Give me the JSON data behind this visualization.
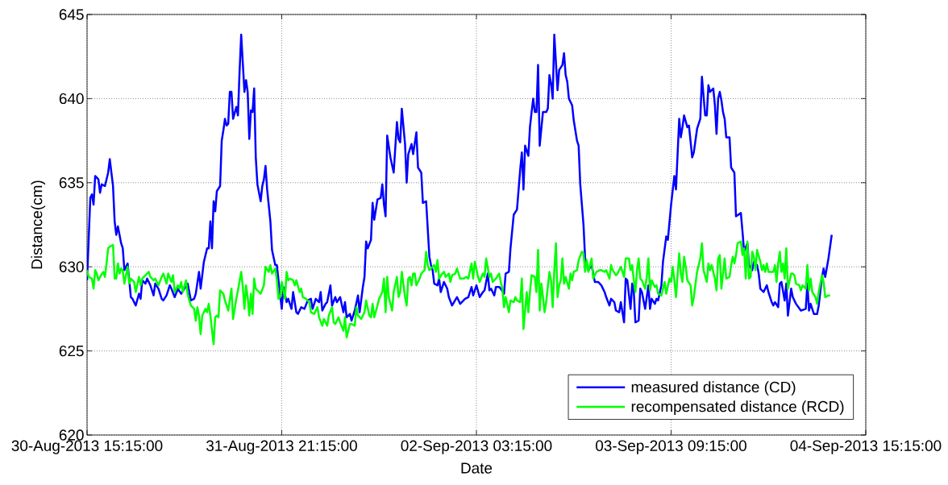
{
  "chart_data": {
    "type": "line",
    "xlabel": "Date",
    "ylabel": "Distance(cm)",
    "xlim": [
      "2013-08-30T15:15",
      "2013-09-04T15:15"
    ],
    "xticks": [
      {
        "value": "2013-08-30T15:15",
        "label": "30-Aug-2013 15:15:00"
      },
      {
        "value": "2013-08-31T21:15",
        "label": "31-Aug-2013 21:15:00"
      },
      {
        "value": "2013-09-02T03:15",
        "label": "02-Sep-2013 03:15:00"
      },
      {
        "value": "2013-09-03T09:15",
        "label": "03-Sep-2013 09:15:00"
      },
      {
        "value": "2013-09-04T15:15",
        "label": "04-Sep-2013 15:15:00"
      }
    ],
    "ylim": [
      620,
      645
    ],
    "yticks": [
      620,
      625,
      630,
      635,
      640,
      645
    ],
    "grid": true,
    "legend": "bottom right",
    "series": [
      {
        "name": "measured distance (CD)",
        "color": "#0000ff",
        "x": [
          "2013-08-30T15:15",
          "2013-08-30T15:45",
          "2013-08-30T16:00",
          "2013-08-30T16:15",
          "2013-08-30T16:30",
          "2013-08-30T17:00",
          "2013-08-30T17:15",
          "2013-08-30T17:30",
          "2013-08-30T18:00",
          "2013-08-30T18:30",
          "2013-08-30T18:45",
          "2013-08-30T19:15",
          "2013-08-30T19:30",
          "2013-08-30T19:45",
          "2013-08-30T20:00",
          "2013-08-30T20:30",
          "2013-08-30T20:45",
          "2013-08-30T21:00",
          "2013-08-30T21:30",
          "2013-08-30T22:00",
          "2013-08-30T22:15",
          "2013-08-30T22:45",
          "2013-08-30T23:15",
          "2013-08-30T23:30",
          "2013-08-30T23:45",
          "2013-08-31T00:15",
          "2013-08-31T00:30",
          "2013-08-31T01:00",
          "2013-08-31T01:30",
          "2013-08-31T01:45",
          "2013-08-31T02:15",
          "2013-08-31T02:45",
          "2013-08-31T03:00",
          "2013-08-31T03:30",
          "2013-08-31T04:00",
          "2013-08-31T04:15",
          "2013-08-31T04:45",
          "2013-08-31T05:15",
          "2013-08-31T05:45",
          "2013-08-31T06:15",
          "2013-08-31T06:45",
          "2013-08-31T07:15",
          "2013-08-31T07:45",
          "2013-08-31T08:00",
          "2013-08-31T08:30",
          "2013-08-31T08:45",
          "2013-08-31T09:15",
          "2013-08-31T09:45",
          "2013-08-31T10:00",
          "2013-08-31T10:15",
          "2013-08-31T10:30",
          "2013-08-31T10:45",
          "2013-08-31T11:00",
          "2013-08-31T11:15",
          "2013-08-31T11:45",
          "2013-08-31T12:00",
          "2013-08-31T12:15",
          "2013-08-31T12:30",
          "2013-08-31T12:45",
          "2013-08-31T13:00",
          "2013-08-31T13:15",
          "2013-08-31T13:30",
          "2013-08-31T13:45",
          "2013-08-31T14:15",
          "2013-08-31T14:30",
          "2013-08-31T14:45",
          "2013-08-31T15:00",
          "2013-08-31T15:30",
          "2013-08-31T15:45",
          "2013-08-31T16:00",
          "2013-08-31T16:15",
          "2013-08-31T16:30",
          "2013-08-31T16:45",
          "2013-08-31T17:00",
          "2013-08-31T17:15",
          "2013-08-31T17:30",
          "2013-08-31T18:00",
          "2013-08-31T18:15",
          "2013-08-31T18:30",
          "2013-08-31T18:45",
          "2013-08-31T19:00",
          "2013-08-31T19:30",
          "2013-08-31T19:45",
          "2013-08-31T20:15",
          "2013-08-31T20:30",
          "2013-08-31T20:45",
          "2013-08-31T21:15",
          "2013-08-31T21:30",
          "2013-08-31T22:00",
          "2013-08-31T22:15",
          "2013-08-31T22:45",
          "2013-08-31T23:00",
          "2013-08-31T23:30",
          "2013-08-31T23:45",
          "2013-09-01T00:15",
          "2013-09-01T00:45",
          "2013-09-01T01:15",
          "2013-09-01T01:45",
          "2013-09-01T02:00",
          "2013-09-01T02:30",
          "2013-09-01T03:00",
          "2013-09-01T03:15",
          "2013-09-01T03:30",
          "2013-09-01T04:00",
          "2013-09-01T04:15",
          "2013-09-01T04:45",
          "2013-09-01T05:00",
          "2013-09-01T05:30",
          "2013-09-01T05:45",
          "2013-09-01T06:15",
          "2013-09-01T06:45",
          "2013-09-01T07:00",
          "2013-09-01T07:15",
          "2013-09-01T07:45",
          "2013-09-01T08:00",
          "2013-09-01T08:30",
          "2013-09-01T09:00",
          "2013-09-01T09:15",
          "2013-09-01T09:45",
          "2013-09-01T10:00",
          "2013-09-01T10:15",
          "2013-09-01T10:30",
          "2013-09-01T11:00",
          "2013-09-01T11:15",
          "2013-09-01T11:30",
          "2013-09-01T12:00",
          "2013-09-01T12:30",
          "2013-09-01T12:45",
          "2013-09-01T13:00",
          "2013-09-01T13:15",
          "2013-09-01T13:30",
          "2013-09-01T14:00",
          "2013-09-01T14:30",
          "2013-09-01T15:00",
          "2013-09-01T15:15",
          "2013-09-01T15:30",
          "2013-09-01T15:45",
          "2013-09-01T16:15",
          "2013-09-01T16:30",
          "2013-09-01T16:45",
          "2013-09-01T17:15",
          "2013-09-01T17:30",
          "2013-09-01T18:00",
          "2013-09-01T18:15",
          "2013-09-01T18:45",
          "2013-09-01T19:00",
          "2013-09-01T19:30",
          "2013-09-01T20:00",
          "2013-09-01T20:15",
          "2013-09-01T20:30",
          "2013-09-01T20:45",
          "2013-09-01T21:15",
          "2013-09-01T21:30",
          "2013-09-01T21:45",
          "2013-09-01T22:15",
          "2013-09-01T22:45",
          "2013-09-01T23:00",
          "2013-09-01T23:30",
          "2013-09-02T00:15",
          "2013-09-02T00:45",
          "2013-09-02T01:30",
          "2013-09-02T02:00",
          "2013-09-02T02:30",
          "2013-09-02T02:45",
          "2013-09-02T03:15",
          "2013-09-02T03:45",
          "2013-09-02T04:15",
          "2013-09-02T04:30",
          "2013-09-02T05:00",
          "2013-09-02T05:15",
          "2013-09-02T05:30",
          "2013-09-02T06:00",
          "2013-09-02T06:15",
          "2013-09-02T06:45",
          "2013-09-02T07:00",
          "2013-09-02T07:30",
          "2013-09-02T07:45",
          "2013-09-02T08:15",
          "2013-09-02T08:30",
          "2013-09-02T08:45",
          "2013-09-02T09:00",
          "2013-09-02T09:30",
          "2013-09-02T09:45",
          "2013-09-02T10:00",
          "2013-09-02T10:15",
          "2013-09-02T10:30",
          "2013-09-02T10:45",
          "2013-09-02T11:15",
          "2013-09-02T11:30",
          "2013-09-02T11:45",
          "2013-09-02T12:00",
          "2013-09-02T12:15",
          "2013-09-02T12:30",
          "2013-09-02T12:45",
          "2013-09-02T13:00",
          "2013-09-02T13:30",
          "2013-09-02T14:00",
          "2013-09-02T14:15",
          "2013-09-02T14:30",
          "2013-09-02T14:45",
          "2013-09-02T15:00",
          "2013-09-02T15:15",
          "2013-09-02T15:45",
          "2013-09-02T16:00",
          "2013-09-02T16:30",
          "2013-09-02T16:45",
          "2013-09-02T17:00",
          "2013-09-02T17:15",
          "2013-09-02T17:30",
          "2013-09-02T18:00",
          "2013-09-02T18:15",
          "2013-09-02T18:45",
          "2013-09-02T19:00",
          "2013-09-02T19:15",
          "2013-09-02T19:45",
          "2013-09-02T20:00",
          "2013-09-02T20:15",
          "2013-09-02T20:30",
          "2013-09-02T21:00",
          "2013-09-02T21:30",
          "2013-09-02T22:00",
          "2013-09-02T22:30",
          "2013-09-02T23:00",
          "2013-09-02T23:15",
          "2013-09-02T23:45",
          "2013-09-03T00:00",
          "2013-09-03T00:30",
          "2013-09-03T00:45",
          "2013-09-03T01:15",
          "2013-09-03T01:30",
          "2013-09-03T02:00",
          "2013-09-03T02:15",
          "2013-09-03T02:30",
          "2013-09-03T03:00",
          "2013-09-03T03:15",
          "2013-09-03T03:30",
          "2013-09-03T03:45",
          "2013-09-03T04:15",
          "2013-09-03T04:30",
          "2013-09-03T04:45",
          "2013-09-03T05:15",
          "2013-09-03T05:45",
          "2013-09-03T06:00",
          "2013-09-03T06:15",
          "2013-09-03T06:45",
          "2013-09-03T07:00",
          "2013-09-03T07:15",
          "2013-09-03T07:45",
          "2013-09-03T08:00",
          "2013-09-03T08:30",
          "2013-09-03T08:45",
          "2013-09-03T09:15",
          "2013-09-03T09:45",
          "2013-09-03T10:00",
          "2013-09-03T10:30",
          "2013-09-03T10:45",
          "2013-09-03T11:00",
          "2013-09-03T11:15",
          "2013-09-03T11:45",
          "2013-09-03T12:00",
          "2013-09-03T12:30",
          "2013-09-03T12:45",
          "2013-09-03T13:15",
          "2013-09-03T13:45",
          "2013-09-03T14:00",
          "2013-09-03T14:30",
          "2013-09-03T14:45",
          "2013-09-03T15:00",
          "2013-09-03T15:15",
          "2013-09-03T15:45",
          "2013-09-03T16:00",
          "2013-09-03T16:15",
          "2013-09-03T16:30",
          "2013-09-03T16:45",
          "2013-09-03T17:00",
          "2013-09-03T17:15",
          "2013-09-03T17:30",
          "2013-09-03T17:45",
          "2013-09-03T18:15",
          "2013-09-03T18:30",
          "2013-09-03T19:00",
          "2013-09-03T19:15",
          "2013-09-03T20:00",
          "2013-09-03T20:15",
          "2013-09-03T20:30",
          "2013-09-03T21:00",
          "2013-09-03T21:15",
          "2013-09-03T21:45",
          "2013-09-03T22:00",
          "2013-09-03T22:30",
          "2013-09-03T22:45",
          "2013-09-03T23:00",
          "2013-09-03T23:30",
          "2013-09-04T00:00",
          "2013-09-04T00:15",
          "2013-09-04T00:45",
          "2013-09-04T01:00",
          "2013-09-04T01:15",
          "2013-09-04T01:45",
          "2013-09-04T02:00",
          "2013-09-04T02:15",
          "2013-09-04T02:45",
          "2013-09-04T03:00",
          "2013-09-04T03:15",
          "2013-09-04T03:45",
          "2013-09-04T04:00",
          "2013-09-04T04:30",
          "2013-09-04T05:15",
          "2013-09-04T06:00",
          "2013-09-04T06:15",
          "2013-09-04T06:30",
          "2013-09-04T06:45",
          "2013-09-04T07:15",
          "2013-09-04T07:45",
          "2013-09-04T08:00",
          "2013-09-04T08:30",
          "2013-09-04T08:45",
          "2013-09-04T09:00",
          "2013-09-04T09:30",
          "2013-09-04T10:00"
        ],
        "values": [
          629.2,
          634.1,
          634.3,
          633.7,
          635.4,
          635.2,
          634.4,
          634.9,
          634.8,
          635.6,
          636.4,
          634.8,
          632.7,
          631.9,
          632.4,
          631.4,
          631.1,
          629.8,
          630.2,
          628.2,
          628.1,
          627.7,
          628.4,
          628.1,
          629.2,
          629.0,
          629.3,
          628.9,
          628.3,
          629.0,
          628.7,
          628.1,
          628.0,
          628.3,
          628.9,
          628.7,
          628.2,
          628.7,
          628.4,
          628.7,
          629.0,
          628.0,
          628.1,
          628.4,
          629.7,
          628.7,
          630.3,
          631.1,
          631.1,
          632.7,
          631.1,
          633.9,
          633.3,
          634.5,
          634.8,
          637.5,
          638.1,
          638.8,
          638.4,
          638.5,
          640.4,
          640.4,
          638.8,
          639.5,
          639.0,
          641.6,
          643.8,
          640.4,
          641.1,
          640.4,
          637.6,
          639.3,
          639.2,
          640.6,
          636.5,
          634.9,
          633.9,
          634.8,
          635.2,
          636.0,
          634.6,
          632.7,
          631.0,
          630.1,
          630.1,
          629.2,
          627.5,
          628.8,
          627.9,
          628.1,
          627.5,
          628.5,
          627.3,
          627.2,
          627.6,
          627.5,
          628.0,
          628.1,
          627.5,
          628.1,
          627.9,
          628.5,
          627.4,
          627.8,
          627.9,
          628.9,
          627.7,
          628.2,
          627.9,
          628.2,
          627.3,
          627.9,
          627.0,
          627.2,
          626.8,
          627.4,
          628.3,
          627.3,
          628.8,
          629.4,
          631.5,
          631.1,
          631.6,
          633.8,
          632.8,
          634.0,
          634.1,
          634.9,
          633.7,
          633.0,
          637.8,
          636.5,
          635.6,
          638.6,
          637.6,
          637.4,
          639.4,
          637.3,
          635.0,
          636.7,
          637.3,
          636.7,
          638.0,
          635.9,
          635.6,
          633.8,
          633.9,
          630.6,
          630.1,
          629.8,
          629.0,
          628.9,
          629.3,
          628.5,
          629.1,
          628.7,
          628.2,
          627.7,
          628.2,
          627.8,
          628.1,
          628.2,
          628.8,
          628.3,
          628.9,
          628.2,
          628.5,
          628.6,
          629.6,
          628.6,
          628.7,
          628.3,
          628.8,
          628.8,
          628.7,
          628.4,
          629.6,
          629.7,
          631.1,
          632.1,
          633.1,
          633.4,
          634.6,
          635.8,
          636.8,
          634.6,
          637.2,
          636.6,
          638.3,
          639.2,
          640.0,
          639.2,
          639.2,
          642.0,
          637.2,
          639.2,
          639.2,
          639.4,
          641.4,
          640.9,
          640.0,
          643.8,
          640.5,
          641.7,
          642.0,
          642.7,
          641.4,
          641.0,
          640.0,
          639.6,
          638.7,
          637.5,
          637.2,
          634.9,
          632.5,
          630.5,
          630.2,
          629.8,
          630.1,
          629.1,
          629.1,
          628.9,
          628.5,
          628.2,
          627.7,
          628.1,
          627.9,
          627.4,
          627.3,
          627.9,
          626.7,
          629.3,
          629.2,
          627.5,
          629.0,
          628.5,
          626.7,
          626.8,
          628.7,
          628.5,
          627.5,
          628.9,
          627.5,
          628.1,
          627.8,
          628.1,
          628.0,
          628.9,
          630.3,
          631.8,
          631.6,
          633.7,
          635.4,
          634.6,
          638.8,
          637.7,
          638.3,
          639.0,
          638.3,
          638.4,
          636.5,
          636.8,
          638.2,
          638.8,
          641.3,
          639.0,
          639.0,
          640.8,
          640.4,
          640.6,
          639.6,
          637.9,
          640.0,
          640.4,
          639.9,
          639.2,
          638.8,
          637.7,
          637.7,
          635.9,
          635.6,
          633.0,
          633.2,
          632.1,
          630.9,
          631.4,
          630.1,
          629.8,
          630.3,
          630.1,
          629.6,
          628.7,
          628.5,
          628.9,
          628.5,
          627.9,
          627.7,
          627.9,
          627.6,
          629.0,
          629.1,
          628.0,
          629.0,
          627.1,
          628.7,
          628.2,
          627.8,
          627.4,
          627.5,
          629.0,
          627.4,
          627.8,
          627.2,
          627.2,
          627.7,
          629.4,
          629.9,
          629.4,
          630.5,
          631.9
        ]
      },
      {
        "name": "recompensated distance (RCD)",
        "color": "#00ff00",
        "x": [
          "2013-08-30T15:15",
          "2013-08-30T15:30",
          "2013-08-30T16:00",
          "2013-08-30T16:15",
          "2013-08-30T16:30",
          "2013-08-30T16:45",
          "2013-08-30T17:00",
          "2013-08-30T17:15",
          "2013-08-30T17:45",
          "2013-08-30T18:00",
          "2013-08-30T18:15",
          "2013-08-30T18:30",
          "2013-08-30T18:45",
          "2013-08-30T19:15",
          "2013-08-30T19:30",
          "2013-08-30T19:45",
          "2013-08-30T20:00",
          "2013-08-30T20:15",
          "2013-08-30T20:30",
          "2013-08-30T20:45",
          "2013-08-30T21:00",
          "2013-08-30T21:30",
          "2013-08-30T21:45",
          "2013-08-30T22:00",
          "2013-08-30T22:30",
          "2013-08-30T22:45",
          "2013-08-30T23:15",
          "2013-08-30T23:30",
          "2013-08-30T23:45",
          "2013-08-31T00:30",
          "2013-08-31T00:45",
          "2013-08-31T01:00",
          "2013-08-31T01:30",
          "2013-08-31T01:45",
          "2013-08-31T02:15",
          "2013-08-31T02:45",
          "2013-08-31T03:00",
          "2013-08-31T03:30",
          "2013-08-31T03:45",
          "2013-08-31T04:15",
          "2013-08-31T04:30",
          "2013-08-31T04:45",
          "2013-08-31T05:15",
          "2013-08-31T05:30",
          "2013-08-31T05:45",
          "2013-08-31T06:00",
          "2013-08-31T06:30",
          "2013-08-31T06:45",
          "2013-08-31T07:00",
          "2013-08-31T07:15",
          "2013-08-31T07:45",
          "2013-08-31T08:00",
          "2013-08-31T08:15",
          "2013-08-31T08:30",
          "2013-08-31T08:45",
          "2013-08-31T09:00",
          "2013-08-31T09:30",
          "2013-08-31T09:45",
          "2013-08-31T10:00",
          "2013-08-31T10:15",
          "2013-08-31T10:45",
          "2013-08-31T11:00",
          "2013-08-31T11:15",
          "2013-08-31T11:30",
          "2013-08-31T11:45",
          "2013-08-31T12:15",
          "2013-08-31T12:30",
          "2013-08-31T13:00",
          "2013-08-31T13:30",
          "2013-08-31T13:45",
          "2013-08-31T14:15",
          "2013-08-31T14:30",
          "2013-08-31T15:00",
          "2013-08-31T15:15",
          "2013-08-31T15:30",
          "2013-08-31T15:45",
          "2013-08-31T16:00",
          "2013-08-31T16:15",
          "2013-08-31T16:30",
          "2013-08-31T16:45",
          "2013-08-31T17:00",
          "2013-08-31T17:15",
          "2013-08-31T17:30",
          "2013-08-31T18:00",
          "2013-08-31T18:30",
          "2013-08-31T18:45",
          "2013-08-31T19:15",
          "2013-08-31T19:30",
          "2013-08-31T19:45",
          "2013-08-31T20:15",
          "2013-08-31T20:30",
          "2013-08-31T20:45",
          "2013-08-31T21:00",
          "2013-08-31T21:15",
          "2013-08-31T21:45",
          "2013-08-31T22:00",
          "2013-08-31T22:15",
          "2013-08-31T22:30",
          "2013-08-31T23:00",
          "2013-08-31T23:15",
          "2013-08-31T23:30",
          "2013-09-01T00:00",
          "2013-09-01T00:15",
          "2013-09-01T00:30",
          "2013-09-01T01:00",
          "2013-09-01T01:30",
          "2013-09-01T01:45",
          "2013-09-01T02:15",
          "2013-09-01T02:45",
          "2013-09-01T03:00",
          "2013-09-01T03:30",
          "2013-09-01T03:45",
          "2013-09-01T04:15",
          "2013-09-01T04:30",
          "2013-09-01T05:00",
          "2013-09-01T05:15",
          "2013-09-01T05:30",
          "2013-09-01T06:00",
          "2013-09-01T06:15",
          "2013-09-01T06:45",
          "2013-09-01T07:00",
          "2013-09-01T07:15",
          "2013-09-01T07:30",
          "2013-09-01T07:45",
          "2013-09-01T08:00",
          "2013-09-01T08:30",
          "2013-09-01T08:45",
          "2013-09-01T09:00",
          "2013-09-01T09:30",
          "2013-09-01T10:00",
          "2013-09-01T10:15",
          "2013-09-01T10:45",
          "2013-09-01T11:00",
          "2013-09-01T11:15",
          "2013-09-01T11:30",
          "2013-09-01T12:00",
          "2013-09-01T12:15",
          "2013-09-01T12:45",
          "2013-09-01T13:00",
          "2013-09-01T13:15",
          "2013-09-01T13:30",
          "2013-09-01T13:45",
          "2013-09-01T14:15",
          "2013-09-01T14:30",
          "2013-09-01T15:00",
          "2013-09-01T15:15",
          "2013-09-01T15:30",
          "2013-09-01T15:45",
          "2013-09-01T16:15",
          "2013-09-01T16:30",
          "2013-09-01T16:45",
          "2013-09-01T17:00",
          "2013-09-01T17:15",
          "2013-09-01T17:30",
          "2013-09-01T17:45",
          "2013-09-01T18:00",
          "2013-09-01T18:30",
          "2013-09-01T18:45",
          "2013-09-01T19:00",
          "2013-09-01T19:15",
          "2013-09-01T19:30",
          "2013-09-01T19:45",
          "2013-09-01T20:00",
          "2013-09-01T20:30",
          "2013-09-01T20:45",
          "2013-09-01T21:00",
          "2013-09-01T21:15",
          "2013-09-01T21:30",
          "2013-09-01T22:00",
          "2013-09-01T22:15",
          "2013-09-01T22:30",
          "2013-09-01T23:00",
          "2013-09-01T23:15",
          "2013-09-01T23:30",
          "2013-09-02T00:00",
          "2013-09-02T00:15",
          "2013-09-02T00:30",
          "2013-09-02T00:45",
          "2013-09-02T01:15",
          "2013-09-02T01:45",
          "2013-09-02T02:00",
          "2013-09-02T02:30",
          "2013-09-02T02:45",
          "2013-09-02T03:00",
          "2013-09-02T03:30",
          "2013-09-02T03:45",
          "2013-09-02T04:15",
          "2013-09-02T04:30",
          "2013-09-02T04:45",
          "2013-09-02T05:15",
          "2013-09-02T05:30",
          "2013-09-02T05:45",
          "2013-09-02T06:15",
          "2013-09-02T06:45",
          "2013-09-02T07:00",
          "2013-09-02T07:15",
          "2013-09-02T07:30",
          "2013-09-02T07:45",
          "2013-09-02T08:15",
          "2013-09-02T08:30",
          "2013-09-02T09:00",
          "2013-09-02T09:15",
          "2013-09-02T09:30",
          "2013-09-02T10:00",
          "2013-09-02T10:15",
          "2013-09-02T10:30",
          "2013-09-02T11:00",
          "2013-09-02T11:15",
          "2013-09-02T11:30",
          "2013-09-02T11:45",
          "2013-09-02T12:15",
          "2013-09-02T12:30",
          "2013-09-02T12:45",
          "2013-09-02T13:00",
          "2013-09-02T13:15",
          "2013-09-02T13:30",
          "2013-09-02T13:45",
          "2013-09-02T14:00",
          "2013-09-02T14:30",
          "2013-09-02T14:45",
          "2013-09-02T15:00",
          "2013-09-02T15:15",
          "2013-09-02T15:30",
          "2013-09-02T15:45",
          "2013-09-02T16:00",
          "2013-09-02T16:15",
          "2013-09-02T16:30",
          "2013-09-02T16:45",
          "2013-09-02T17:00",
          "2013-09-02T17:30",
          "2013-09-02T17:45",
          "2013-09-02T18:00",
          "2013-09-02T18:15",
          "2013-09-02T18:45",
          "2013-09-02T19:00",
          "2013-09-02T19:30",
          "2013-09-02T19:45",
          "2013-09-02T20:00",
          "2013-09-02T20:15",
          "2013-09-02T20:30",
          "2013-09-02T20:45",
          "2013-09-02T21:00",
          "2013-09-02T21:15",
          "2013-09-02T21:45",
          "2013-09-02T22:15",
          "2013-09-02T22:30",
          "2013-09-02T23:00",
          "2013-09-02T23:15",
          "2013-09-02T23:45",
          "2013-09-03T00:00",
          "2013-09-03T00:15",
          "2013-09-03T00:45",
          "2013-09-03T01:00",
          "2013-09-03T01:30",
          "2013-09-03T02:00",
          "2013-09-03T02:15",
          "2013-09-03T02:45",
          "2013-09-03T03:00",
          "2013-09-03T03:15",
          "2013-09-03T03:30",
          "2013-09-03T03:45",
          "2013-09-03T04:00",
          "2013-09-03T04:15",
          "2013-09-03T04:30",
          "2013-09-03T04:45",
          "2013-09-03T05:15",
          "2013-09-03T05:30",
          "2013-09-03T05:45",
          "2013-09-03T06:00",
          "2013-09-03T06:15",
          "2013-09-03T06:45",
          "2013-09-03T07:00",
          "2013-09-03T07:15",
          "2013-09-03T07:45",
          "2013-09-03T08:00",
          "2013-09-03T08:15",
          "2013-09-03T08:30",
          "2013-09-03T09:00",
          "2013-09-03T09:15",
          "2013-09-03T09:30",
          "2013-09-03T09:45",
          "2013-09-03T10:00",
          "2013-09-03T10:30",
          "2013-09-03T10:45",
          "2013-09-03T11:00",
          "2013-09-03T11:15",
          "2013-09-03T11:30",
          "2013-09-03T11:45",
          "2013-09-03T12:15",
          "2013-09-03T12:30",
          "2013-09-03T12:45",
          "2013-09-03T13:15",
          "2013-09-03T13:30",
          "2013-09-03T13:45",
          "2013-09-03T14:00",
          "2013-09-03T14:15",
          "2013-09-03T14:45",
          "2013-09-03T15:00",
          "2013-09-03T15:15",
          "2013-09-03T15:30",
          "2013-09-03T16:00",
          "2013-09-03T16:15",
          "2013-09-03T16:30",
          "2013-09-03T16:45",
          "2013-09-03T17:00",
          "2013-09-03T17:15",
          "2013-09-03T17:30",
          "2013-09-03T17:45",
          "2013-09-03T18:15",
          "2013-09-03T18:30",
          "2013-09-03T18:45",
          "2013-09-03T19:00",
          "2013-09-03T19:15",
          "2013-09-03T19:30",
          "2013-09-03T20:00",
          "2013-09-03T20:15",
          "2013-09-03T20:30",
          "2013-09-03T20:45",
          "2013-09-03T21:00",
          "2013-09-03T21:15",
          "2013-09-03T21:30",
          "2013-09-03T21:45",
          "2013-09-03T22:00",
          "2013-09-03T22:15",
          "2013-09-03T22:30",
          "2013-09-03T23:00",
          "2013-09-03T23:15",
          "2013-09-03T23:30",
          "2013-09-03T23:45",
          "2013-09-04T00:00",
          "2013-09-04T00:15",
          "2013-09-04T00:45",
          "2013-09-04T01:00",
          "2013-09-04T01:15",
          "2013-09-04T01:30",
          "2013-09-04T01:45",
          "2013-09-04T02:00",
          "2013-09-04T02:15",
          "2013-09-04T02:30",
          "2013-09-04T02:45",
          "2013-09-04T03:00",
          "2013-09-04T03:15",
          "2013-09-04T03:45",
          "2013-09-04T04:00",
          "2013-09-04T04:15",
          "2013-09-04T04:30",
          "2013-09-04T05:00",
          "2013-09-04T05:15",
          "2013-09-04T05:30",
          "2013-09-04T06:00",
          "2013-09-04T06:15",
          "2013-09-04T06:30",
          "2013-09-04T06:45",
          "2013-09-04T07:00",
          "2013-09-04T07:30",
          "2013-09-04T07:45",
          "2013-09-04T08:00",
          "2013-09-04T08:30",
          "2013-09-04T08:45",
          "2013-09-04T09:00",
          "2013-09-04T09:30",
          "2013-09-04T09:45"
        ],
        "values": [
          629.8,
          629.4,
          629.3,
          628.7,
          629.8,
          629.6,
          629.2,
          629.4,
          629.7,
          629.4,
          630.2,
          631.1,
          631.2,
          631.3,
          629.3,
          629.3,
          630.2,
          629.6,
          629.9,
          629.8,
          629.0,
          630.0,
          629.0,
          629.3,
          629.1,
          628.5,
          629.4,
          628.9,
          629.3,
          629.6,
          629.7,
          629.4,
          629.2,
          629.3,
          628.9,
          629.4,
          629.6,
          629.0,
          629.6,
          629.1,
          629.5,
          628.5,
          628.9,
          628.7,
          629.1,
          628.5,
          629.2,
          628.4,
          628.0,
          627.7,
          627.5,
          626.8,
          627.6,
          627.1,
          626.0,
          627.1,
          627.5,
          627.3,
          627.8,
          627.1,
          625.4,
          627.0,
          627.1,
          627.0,
          628.6,
          628.4,
          628.0,
          627.4,
          628.7,
          626.9,
          628.1,
          628.6,
          629.7,
          628.8,
          627.5,
          628.9,
          628.2,
          627.1,
          628.4,
          627.2,
          629.3,
          628.7,
          628.6,
          628.4,
          628.9,
          630.0,
          629.7,
          630.1,
          629.6,
          629.9,
          629.2,
          628.1,
          628.2,
          629.1,
          628.1,
          629.7,
          629.2,
          629.3,
          629.2,
          628.9,
          629.2,
          628.5,
          628.7,
          628.2,
          628.1,
          627.9,
          627.3,
          627.2,
          627.6,
          627.0,
          626.5,
          626.9,
          626.5,
          627.1,
          627.6,
          626.7,
          626.6,
          627.0,
          626.7,
          626.2,
          627.0,
          625.8,
          626.2,
          626.6,
          626.6,
          626.5,
          627.6,
          627.1,
          626.9,
          627.3,
          628.0,
          627.1,
          627.0,
          627.8,
          627.0,
          627.7,
          628.1,
          628.5,
          629.3,
          627.3,
          629.4,
          628.2,
          627.4,
          628.5,
          629.4,
          628.2,
          628.5,
          629.7,
          628.2,
          627.7,
          629.3,
          629.4,
          628.9,
          629.6,
          629.6,
          628.9,
          629.3,
          629.6,
          629.7,
          629.8,
          630.9,
          630.1,
          629.8,
          630.0,
          630.1,
          629.7,
          630.4,
          629.3,
          629.6,
          629.7,
          629.4,
          629.6,
          629.1,
          629.5,
          629.6,
          629.9,
          629.6,
          629.3,
          629.3,
          629.4,
          629.3,
          630.2,
          629.3,
          630.3,
          629.4,
          629.1,
          629.6,
          629.4,
          630.5,
          629.4,
          629.6,
          629.1,
          629.3,
          629.6,
          629.1,
          628.7,
          627.6,
          628.2,
          627.3,
          628.0,
          627.9,
          628.2,
          628.0,
          627.9,
          629.3,
          626.3,
          628.5,
          627.3,
          628.5,
          629.5,
          629.4,
          628.5,
          631.0,
          627.4,
          629.0,
          628.2,
          627.3,
          627.9,
          629.7,
          629.2,
          627.6,
          629.8,
          631.4,
          628.2,
          628.9,
          629.2,
          630.5,
          629.0,
          629.4,
          628.7,
          629.6,
          629.2,
          629.7,
          629.8,
          630.4,
          630.9,
          630.8,
          629.7,
          630.4,
          629.7,
          630.1,
          630.5,
          629.3,
          629.7,
          629.8,
          629.8,
          629.7,
          629.8,
          629.3,
          630.1,
          629.8,
          629.5,
          629.6,
          630.0,
          629.4,
          630.5,
          630.5,
          629.8,
          630.1,
          629.2,
          628.5,
          629.8,
          630.5,
          629.3,
          629.2,
          628.7,
          629.4,
          630.5,
          628.6,
          629.2,
          628.8,
          628.9,
          628.4,
          628.3,
          628.7,
          629.1,
          628.4,
          629.3,
          629.1,
          630.0,
          629.2,
          628.2,
          630.8,
          629.6,
          629.1,
          630.6,
          630.0,
          629.2,
          628.9,
          627.7,
          628.2,
          629.7,
          630.1,
          630.5,
          631.4,
          629.8,
          629.1,
          630.2,
          629.8,
          630.1,
          629.3,
          628.6,
          630.5,
          630.7,
          628.7,
          629.6,
          630.5,
          629.3,
          629.4,
          630.1,
          630.6,
          630.2,
          630.7,
          631.4,
          631.5,
          630.7,
          631.1,
          629.3,
          631.5,
          629.3,
          629.4,
          630.9,
          630.6,
          629.8,
          631.0,
          630.3,
          629.8,
          630.1,
          629.7,
          630.2,
          629.7,
          629.7,
          629.7,
          630.1,
          629.1,
          630.2,
          630.9,
          629.7,
          630.2,
          629.3,
          631.1,
          628.7,
          629.6,
          629.6,
          629.5,
          629.0,
          628.9,
          628.6,
          628.9,
          628.7,
          630.1,
          628.6,
          629.3,
          628.5,
          628.2,
          627.8,
          628.5,
          629.5,
          629.1,
          628.2,
          628.3,
          628.3
        ]
      }
    ]
  }
}
